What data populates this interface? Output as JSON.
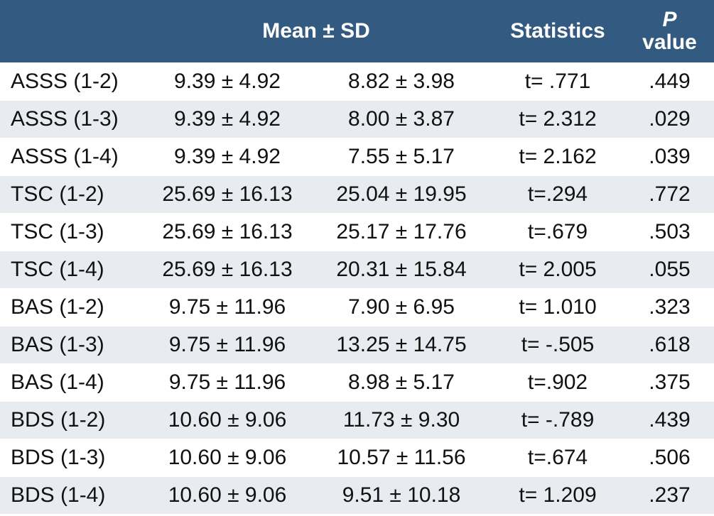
{
  "table": {
    "header": {
      "mean_sd": "Mean ± SD",
      "statistics": "Statistics",
      "p_value": [
        "P",
        "value"
      ]
    },
    "rows": [
      [
        "ASSS (1-2)",
        "9.39 ± 4.92",
        "8.82 ± 3.98",
        "t= .771",
        ".449"
      ],
      [
        "ASSS (1-3)",
        "9.39 ± 4.92",
        "8.00 ± 3.87",
        "t= 2.312",
        ".029"
      ],
      [
        "ASSS (1-4)",
        "9.39 ± 4.92",
        "7.55 ± 5.17",
        "t= 2.162",
        ".039"
      ],
      [
        "TSC (1-2)",
        "25.69 ± 16.13",
        "25.04 ± 19.95",
        "t=.294",
        ".772"
      ],
      [
        "TSC (1-3)",
        "25.69 ± 16.13",
        "25.17 ± 17.76",
        "t=.679",
        ".503"
      ],
      [
        "TSC (1-4)",
        "25.69 ± 16.13",
        "20.31 ± 15.84",
        "t= 2.005",
        ".055"
      ],
      [
        "BAS (1-2)",
        "9.75 ± 11.96",
        "7.90 ± 6.95",
        "t= 1.010",
        ".323"
      ],
      [
        "BAS (1-3)",
        "9.75 ± 11.96",
        "13.25 ± 14.75",
        "t= -.505",
        ".618"
      ],
      [
        "BAS (1-4)",
        "9.75 ± 11.96",
        "8.98 ± 5.17",
        "t=.902",
        ".375"
      ],
      [
        "BDS (1-2)",
        "10.60 ± 9.06",
        "11.73 ± 9.30",
        "t= -.789",
        ".439"
      ],
      [
        "BDS (1-3)",
        "10.60 ± 9.06",
        "10.57 ± 11.56",
        "t=.674",
        ".506"
      ],
      [
        "BDS (1-4)",
        "10.60 ± 9.06",
        "9.51 ± 10.18",
        "t= 1.209",
        ".237"
      ]
    ]
  }
}
